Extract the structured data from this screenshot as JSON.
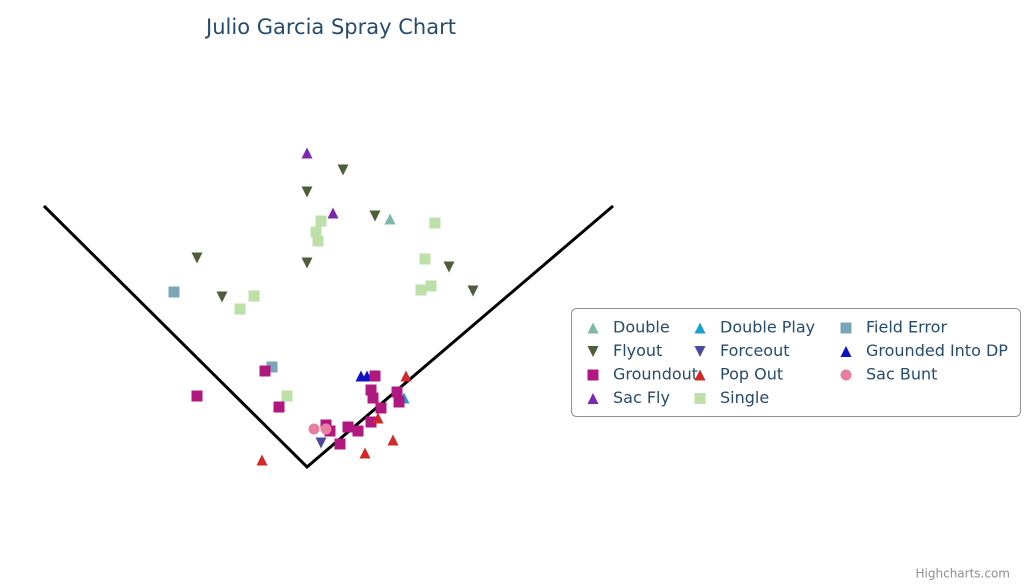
{
  "chart_data": {
    "type": "scatter",
    "title": "Julio Garcia Spray Chart",
    "credits": "Highcharts.com",
    "xlim": [
      -300,
      320
    ],
    "ylim": [
      -20,
      330
    ],
    "series": [
      {
        "name": "Double",
        "color": "#7fb8a8",
        "symbol": "triangle",
        "x": [
          83
        ],
        "values": [
          248
        ]
      },
      {
        "name": "Double Play",
        "color": "#1aa0d8",
        "symbol": "triangle",
        "x": [
          97
        ],
        "values": [
          69
        ]
      },
      {
        "name": "Field Error",
        "color": "#7aa6b8",
        "symbol": "square",
        "x": [
          -133,
          -35
        ],
        "values": [
          175,
          100
        ]
      },
      {
        "name": "Flyout",
        "color": "#4f5e3a",
        "symbol": "triangle-down",
        "x": [
          36,
          0,
          68,
          -110,
          0,
          142,
          -85,
          166
        ],
        "values": [
          297,
          275,
          251,
          209,
          204,
          200,
          170,
          176
        ]
      },
      {
        "name": "Forceout",
        "color": "#4a4aa0",
        "symbol": "triangle-down",
        "x": [
          14
        ],
        "values": [
          24
        ]
      },
      {
        "name": "Grounded Into DP",
        "color": "#1010c8",
        "symbol": "triangle",
        "x": [
          54,
          60
        ],
        "values": [
          91,
          91
        ]
      },
      {
        "name": "Groundout",
        "color": "#b0187f",
        "symbol": "square",
        "x": [
          -42,
          -110,
          -28,
          68,
          64,
          66,
          74,
          90,
          92,
          64,
          41,
          51,
          19,
          23,
          33
        ],
        "values": [
          96,
          71,
          60,
          91,
          77,
          69,
          59,
          75,
          65,
          45,
          40,
          36,
          42,
          36,
          23
        ]
      },
      {
        "name": "Pop Out",
        "color": "#d42828",
        "symbol": "triangle",
        "x": [
          99,
          71,
          86,
          58,
          -45
        ],
        "values": [
          91,
          49,
          27,
          14,
          7
        ]
      },
      {
        "name": "Sac Bunt",
        "color": "#e87fa0",
        "symbol": "circle",
        "x": [
          7,
          19
        ],
        "values": [
          38,
          38
        ]
      },
      {
        "name": "Sac Fly",
        "color": "#7a28b0",
        "symbol": "triangle",
        "x": [
          0,
          26
        ],
        "values": [
          314,
          254
        ]
      },
      {
        "name": "Single",
        "color": "#bde0a8",
        "symbol": "square",
        "x": [
          128,
          14,
          9,
          11,
          118,
          124,
          114,
          -53,
          -67,
          -20
        ],
        "values": [
          244,
          246,
          235,
          226,
          208,
          181,
          177,
          171,
          158,
          71
        ]
      }
    ]
  }
}
